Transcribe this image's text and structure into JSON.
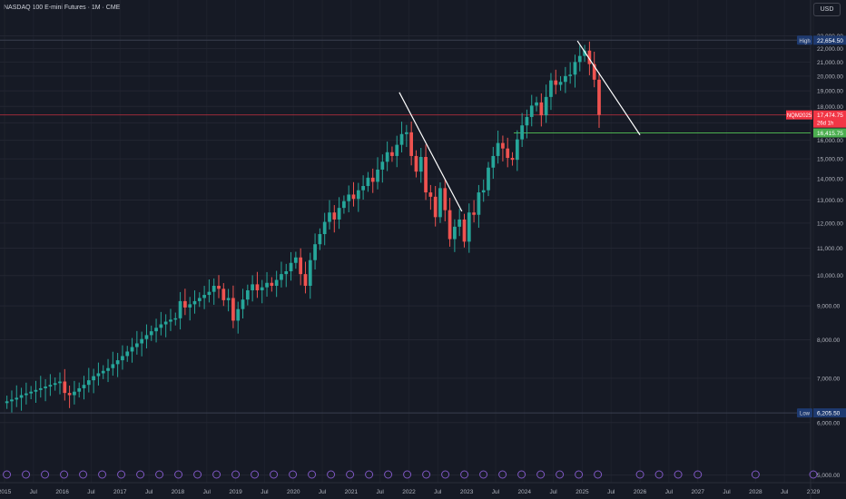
{
  "header": {
    "symbol_title": "NASDAQ 100 E-mini Futures · 1M · CME",
    "currency": "USD"
  },
  "colors": {
    "background": "#161a25",
    "up": "#26a69a",
    "down": "#ef5350",
    "grid": "#232632",
    "axis_text": "#b2b5be",
    "support_line": "#4caf50",
    "current_price_line": "#f23645",
    "trendline": "#ffffff",
    "high_low_label": "#1e3a70"
  },
  "chart_data": {
    "type": "candlestick",
    "title": "NASDAQ 100 E-mini Futures · 1M · CME",
    "timeframe": "1M",
    "y_scale": "log",
    "ylim": [
      4900,
      23700
    ],
    "xlim": [
      "2015-01",
      "2028-12"
    ],
    "grid": true,
    "y_ticks": [
      "23,000.00",
      "22,000.00",
      "21,000.00",
      "20,000.00",
      "19,000.00",
      "18,000.00",
      "17,000.00",
      "16,000.00",
      "15,000.00",
      "14,000.00",
      "13,000.00",
      "12,000.00",
      "11,000.00",
      "10,000.00",
      "9,000.00",
      "8,000.00",
      "7,000.00",
      "6,000.00",
      "5,000.00"
    ],
    "x_ticks": [
      "2015",
      "Jul",
      "2016",
      "Jul",
      "2017",
      "Jul",
      "2018",
      "Jul",
      "2019",
      "Jul",
      "2020",
      "Jul",
      "2021",
      "Jul",
      "2022",
      "Jul",
      "2023",
      "Jul",
      "2024",
      "Jul",
      "2025",
      "Jul",
      "2026",
      "Jul",
      "2027",
      "Jul",
      "2028",
      "Jul",
      "2029"
    ],
    "candles_yearly": [
      {
        "year": 2015,
        "values": [
          6420,
          6460,
          6500,
          6540,
          6600,
          6640,
          6680,
          6720,
          6760,
          6800,
          6840,
          6880,
          6920
        ]
      },
      {
        "year": 2016,
        "values": [
          6920,
          6650,
          6600,
          6680,
          6760,
          6840,
          6950,
          7050,
          7120,
          7180,
          7250,
          7350,
          7450
        ]
      },
      {
        "year": 2017,
        "values": [
          7450,
          7560,
          7680,
          7800,
          7900,
          8020,
          8130,
          8240,
          8340,
          8440,
          8520,
          8580,
          8620
        ]
      },
      {
        "year": 2018,
        "values": [
          8620,
          9150,
          8950,
          9050,
          9150,
          9250,
          9350,
          9450,
          9650,
          9550,
          9180,
          9250,
          8550
        ]
      },
      {
        "year": 2019,
        "values": [
          8550,
          8900,
          9200,
          9500,
          9700,
          9500,
          9600,
          9750,
          9650,
          9850,
          10050,
          10150,
          10450
        ]
      },
      {
        "year": 2020,
        "values": [
          10450,
          10650,
          10050,
          9650,
          10550,
          11150,
          11550,
          12050,
          12450,
          12150,
          12650,
          12950,
          13250
        ]
      },
      {
        "year": 2021,
        "values": [
          13250,
          13050,
          13450,
          13650,
          14050,
          13850,
          14450,
          14850,
          15350,
          15150,
          15750,
          16350,
          16450
        ]
      },
      {
        "year": 2022,
        "values": [
          16450,
          15150,
          14350,
          15100,
          13350,
          13150,
          12250,
          13550,
          12550,
          11350,
          11850,
          12150,
          11250
        ]
      },
      {
        "year": 2023,
        "values": [
          11250,
          12450,
          12350,
          13350,
          13450,
          14550,
          15150,
          15850,
          15550,
          15050,
          14950,
          16050,
          16850
        ]
      },
      {
        "year": 2024,
        "values": [
          16850,
          17350,
          18050,
          18250,
          17450,
          18600,
          19700,
          19400,
          19600,
          20000,
          20100,
          21000,
          21450
        ]
      },
      {
        "year": 2025,
        "values": [
          21450,
          21850,
          20850,
          19750,
          17474.75
        ]
      }
    ],
    "levels": {
      "high": {
        "label": "High",
        "value": "22,654.50",
        "price": 22654.5
      },
      "low": {
        "label": "Low",
        "value": "6,205.50",
        "price": 6205.5
      },
      "current": {
        "symbol": "NQM2025",
        "value": "17,474.75",
        "price": 17474.75,
        "countdown": "26d 1h"
      },
      "support": {
        "value": "16,415.75",
        "price": 16415.75
      }
    },
    "trendlines": [
      {
        "from": [
          "2021-11",
          18900
        ],
        "to": [
          "2022-12",
          12500
        ]
      },
      {
        "from": [
          "2024-12",
          22600
        ],
        "to": [
          "2026-01",
          16300
        ]
      }
    ],
    "event_markers_visible": true
  }
}
